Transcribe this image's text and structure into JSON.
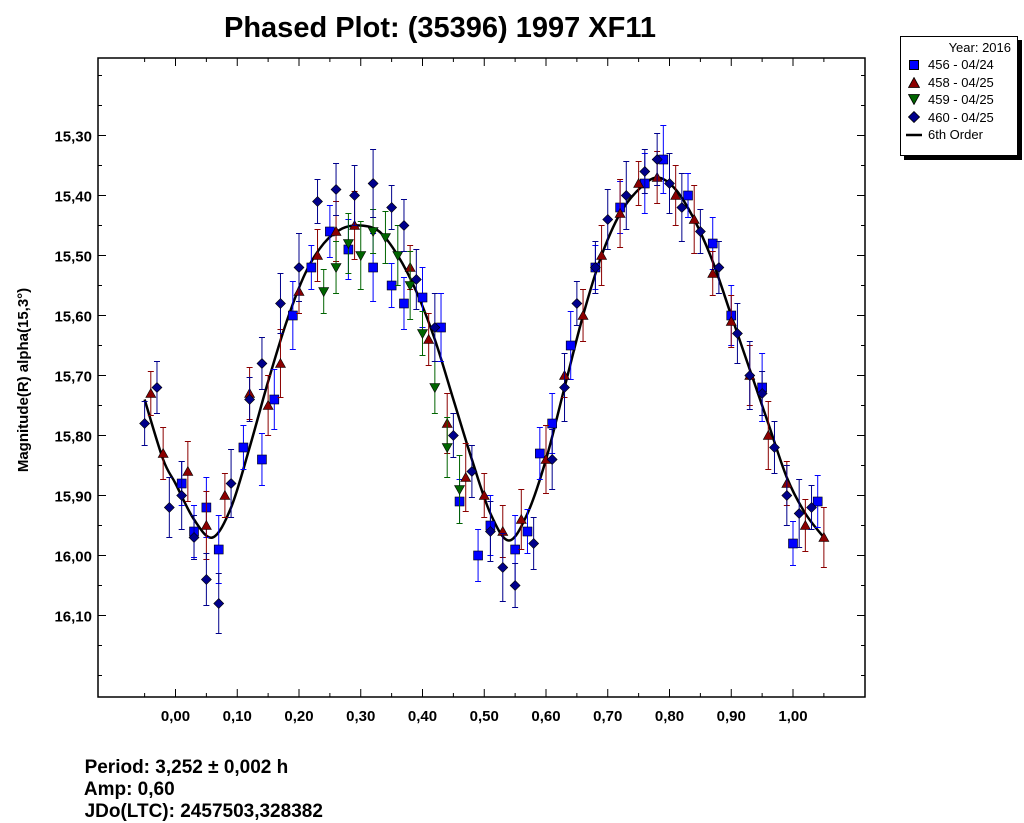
{
  "chart_data": {
    "type": "scatter",
    "title": "Phased Plot: (35396) 1997 XF11",
    "xlabel": "",
    "ylabel": "Magnitude(R) alpha(15,3°)",
    "xlim": [
      -0.125,
      1.125
    ],
    "ylim": [
      16.23,
      15.16
    ],
    "x_ticks": [
      "0,00",
      "0,10",
      "0,20",
      "0,30",
      "0,40",
      "0,50",
      "0,60",
      "0,70",
      "0,80",
      "0,90",
      "1,00"
    ],
    "x_tick_values": [
      0,
      0.1,
      0.2,
      0.3,
      0.4,
      0.5,
      0.6,
      0.7,
      0.8,
      0.9,
      1.0
    ],
    "y_ticks": [
      "15,30",
      "15,40",
      "15,50",
      "15,60",
      "15,70",
      "15,80",
      "15,90",
      "16,00",
      "16,10"
    ],
    "y_tick_values": [
      15.3,
      15.4,
      15.5,
      15.6,
      15.7,
      15.8,
      15.9,
      16.0,
      16.1
    ],
    "legend_title": "Year: 2016",
    "fit": {
      "name": "6th Order",
      "color": "#000000",
      "x": [
        -0.05,
        -0.02,
        0.0,
        0.03,
        0.06,
        0.09,
        0.12,
        0.15,
        0.18,
        0.21,
        0.24,
        0.27,
        0.3,
        0.33,
        0.36,
        0.39,
        0.42,
        0.45,
        0.48,
        0.51,
        0.54,
        0.57,
        0.6,
        0.63,
        0.66,
        0.69,
        0.72,
        0.75,
        0.78,
        0.81,
        0.84,
        0.87,
        0.9,
        0.93,
        0.96,
        0.99,
        1.02,
        1.05
      ],
      "y": [
        15.74,
        15.84,
        15.88,
        15.94,
        15.97,
        15.92,
        15.82,
        15.71,
        15.61,
        15.53,
        15.48,
        15.455,
        15.45,
        15.46,
        15.5,
        15.56,
        15.64,
        15.74,
        15.84,
        15.93,
        15.975,
        15.93,
        15.84,
        15.72,
        15.6,
        15.5,
        15.43,
        15.39,
        15.37,
        15.39,
        15.44,
        15.51,
        15.6,
        15.69,
        15.78,
        15.87,
        15.93,
        15.97
      ]
    },
    "series": [
      {
        "name": "456 - 04/24",
        "marker": "square",
        "color": "#0000ff",
        "x": [
          0.01,
          0.03,
          0.05,
          0.07,
          0.11,
          0.14,
          0.16,
          0.19,
          0.22,
          0.25,
          0.28,
          0.32,
          0.35,
          0.37,
          0.4,
          0.43,
          0.46,
          0.49,
          0.51,
          0.55,
          0.57,
          0.59,
          0.61,
          0.64,
          0.68,
          0.72,
          0.76,
          0.79,
          0.83,
          0.87,
          0.9,
          0.95,
          1.0,
          1.04
        ],
        "y": [
          15.88,
          15.96,
          15.92,
          15.99,
          15.82,
          15.84,
          15.74,
          15.6,
          15.52,
          15.46,
          15.49,
          15.52,
          15.55,
          15.58,
          15.57,
          15.62,
          15.91,
          16.0,
          15.95,
          15.99,
          15.96,
          15.83,
          15.78,
          15.65,
          15.52,
          15.42,
          15.38,
          15.34,
          15.4,
          15.48,
          15.6,
          15.72,
          15.98,
          15.91
        ]
      },
      {
        "name": "458 - 04/25",
        "marker": "triangle-up",
        "color": "#8b0000",
        "x": [
          -0.04,
          -0.02,
          0.02,
          0.05,
          0.08,
          0.12,
          0.15,
          0.17,
          0.2,
          0.23,
          0.26,
          0.29,
          0.38,
          0.41,
          0.44,
          0.47,
          0.5,
          0.53,
          0.56,
          0.6,
          0.63,
          0.66,
          0.69,
          0.72,
          0.75,
          0.78,
          0.81,
          0.84,
          0.87,
          0.9,
          0.93,
          0.96,
          0.99,
          1.02,
          1.05
        ],
        "y": [
          15.73,
          15.83,
          15.86,
          15.95,
          15.9,
          15.73,
          15.75,
          15.68,
          15.56,
          15.5,
          15.46,
          15.45,
          15.52,
          15.64,
          15.78,
          15.87,
          15.9,
          15.96,
          15.94,
          15.84,
          15.7,
          15.6,
          15.5,
          15.43,
          15.38,
          15.37,
          15.4,
          15.44,
          15.53,
          15.61,
          15.7,
          15.8,
          15.88,
          15.95,
          15.97
        ]
      },
      {
        "name": "459 - 04/25",
        "marker": "triangle-down",
        "color": "#006400",
        "x": [
          0.24,
          0.26,
          0.28,
          0.3,
          0.32,
          0.34,
          0.36,
          0.38,
          0.4,
          0.42,
          0.44,
          0.46
        ],
        "y": [
          15.56,
          15.52,
          15.48,
          15.5,
          15.46,
          15.47,
          15.5,
          15.55,
          15.63,
          15.72,
          15.82,
          15.89
        ]
      },
      {
        "name": "460 - 04/25",
        "marker": "diamond",
        "color": "#00008b",
        "x": [
          -0.05,
          -0.03,
          -0.01,
          0.01,
          0.03,
          0.05,
          0.07,
          0.09,
          0.12,
          0.14,
          0.17,
          0.2,
          0.23,
          0.26,
          0.29,
          0.32,
          0.35,
          0.37,
          0.39,
          0.42,
          0.45,
          0.48,
          0.51,
          0.53,
          0.55,
          0.58,
          0.61,
          0.63,
          0.65,
          0.68,
          0.7,
          0.73,
          0.76,
          0.78,
          0.8,
          0.82,
          0.85,
          0.88,
          0.91,
          0.93,
          0.95,
          0.97,
          0.99,
          1.01,
          1.03
        ],
        "y": [
          15.78,
          15.72,
          15.92,
          15.9,
          15.97,
          16.04,
          16.08,
          15.88,
          15.74,
          15.68,
          15.58,
          15.52,
          15.41,
          15.39,
          15.4,
          15.38,
          15.42,
          15.45,
          15.54,
          15.62,
          15.8,
          15.86,
          15.96,
          16.02,
          16.05,
          15.98,
          15.84,
          15.72,
          15.58,
          15.52,
          15.44,
          15.4,
          15.36,
          15.34,
          15.38,
          15.42,
          15.46,
          15.52,
          15.63,
          15.7,
          15.73,
          15.82,
          15.9,
          15.93,
          15.92
        ]
      }
    ]
  },
  "footer": {
    "period": "Period: 3,252 ± 0,002 h",
    "amp": "Amp: 0,60",
    "jdo": "JDo(LTC): 2457503,328382"
  }
}
